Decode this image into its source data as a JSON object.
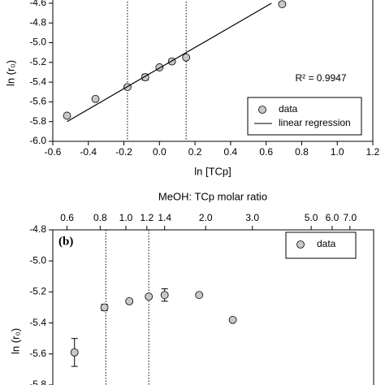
{
  "chart_data": [
    {
      "type": "scatter",
      "xlabel": "ln [TCp]",
      "ylabel": "ln (r₀)",
      "annotation": "R² = 0.9947",
      "xlim": [
        -0.6,
        1.2
      ],
      "xticks": [
        -0.6,
        -0.4,
        -0.2,
        {
          "value": 0,
          "label": "0.0"
        },
        0.2,
        0.4,
        0.6,
        0.8,
        {
          "value": 1,
          "label": "1.0"
        },
        1.2
      ],
      "ylim": [
        -6.0,
        -4.6
      ],
      "yticks": [
        {
          "value": -6,
          "label": "-6.0"
        },
        -5.8,
        -5.6,
        -5.4,
        -5.2,
        {
          "value": -5,
          "label": "-5.0"
        },
        -4.8,
        -4.6
      ],
      "vlines": [
        -0.18,
        0.15
      ],
      "legend": "lower right",
      "series": [
        {
          "name": "data",
          "color": "#c8c8c8",
          "kind": "marker",
          "x": [
            -0.52,
            -0.36,
            -0.18,
            -0.08,
            0.0,
            0.07,
            0.15,
            0.69
          ],
          "values": [
            -5.74,
            -5.57,
            -5.45,
            -5.35,
            -5.25,
            -5.19,
            -5.15,
            -4.61
          ],
          "errors": [
            null,
            null,
            null,
            0.03,
            null,
            null,
            null,
            null
          ]
        },
        {
          "name": "linear regression",
          "color": "#000000",
          "kind": "line",
          "x": [
            -0.52,
            0.63
          ],
          "values": [
            -5.8,
            -4.6
          ]
        }
      ]
    },
    {
      "type": "scatter",
      "xlabel": "MeOH: TCp molar ratio",
      "ylabel": "ln (r₀)",
      "panel_label": "(b)",
      "xscale": "log",
      "xaxis": "top",
      "xlim": [
        0.53,
        8.6
      ],
      "xticks": [
        0.6,
        0.8,
        {
          "value": 1,
          "label": "1.0"
        },
        1.2,
        1.4,
        {
          "value": 2,
          "label": "2.0"
        },
        {
          "value": 3,
          "label": "3.0"
        },
        {
          "value": 5,
          "label": "5.0"
        },
        {
          "value": 6,
          "label": "6.0"
        },
        {
          "value": 7,
          "label": "7.0"
        }
      ],
      "ylim": [
        -5.8,
        -4.8
      ],
      "yticks": [
        -5.8,
        -5.6,
        -5.4,
        -5.2,
        {
          "value": -5,
          "label": "-5.0"
        },
        -4.8
      ],
      "vlines": [
        0.84,
        1.22
      ],
      "legend": "upper right",
      "series": [
        {
          "name": "data",
          "color": "#c8c8c8",
          "kind": "marker",
          "x": [
            0.64,
            0.83,
            1.03,
            1.22,
            1.4,
            1.89,
            2.53
          ],
          "values": [
            -5.59,
            -5.3,
            -5.26,
            -5.23,
            -5.22,
            -5.22,
            -5.38
          ],
          "errors": [
            0.09,
            0.02,
            null,
            null,
            0.04,
            null,
            null
          ]
        }
      ]
    }
  ]
}
